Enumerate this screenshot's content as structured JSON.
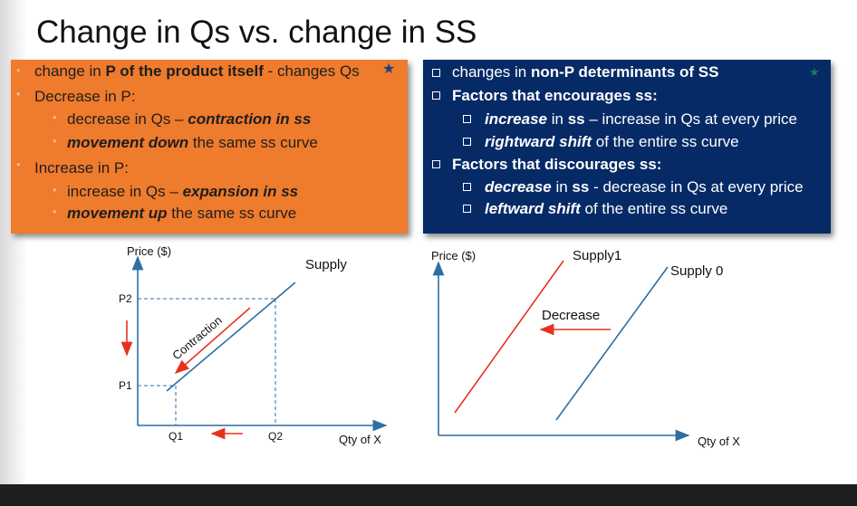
{
  "title": "Change in Qs vs. change in SS",
  "left_box": {
    "l1_pre": "change in ",
    "l1_bold": "P of the product itself",
    "l1_post": " - changes Qs",
    "l2": "Decrease in P:",
    "l3_pre": "decrease in Qs – ",
    "l3_bi": "contraction in ss",
    "l4_bi": "movement down",
    "l4_post": " the same ss curve",
    "l5": "Increase in P:",
    "l6_pre": "increase in Qs – ",
    "l6_bi": "expansion in ss",
    "l7_bi": "movement up",
    "l7_post": " the same ss curve"
  },
  "right_box": {
    "l1_pre": "changes in ",
    "l1_bold": "non-P determinants of SS",
    "l2": "Factors that encourages ss:",
    "l3_bi": "increase",
    "l3_mid": " in ",
    "l3_b": "ss",
    "l3_post": " – increase in Qs at every price",
    "l4_bi": "rightward shift",
    "l4_post": " of the entire ss curve",
    "l5": "Factors that discourages ss:",
    "l6_bi": "decrease",
    "l6_mid": " in ",
    "l6_b": "ss",
    "l6_post": " - decrease in Qs at every price",
    "l7_bi": "leftward shift",
    "l7_post": " of the entire ss curve"
  },
  "left_graph": {
    "ylabel": "Price ($)",
    "xlabel": "Qty of X",
    "curve_label": "Supply",
    "p2": "P2",
    "p1": "P1",
    "q1": "Q1",
    "q2": "Q2",
    "arrow_label": "Contraction"
  },
  "right_graph": {
    "ylabel": "Price ($)",
    "xlabel": "Qty of X",
    "curve1_label": "Supply1",
    "curve0_label": "Supply 0",
    "arrow_label": "Decrease"
  },
  "colors": {
    "orange": "#ef7b2d",
    "navy": "#062a66",
    "supply_line": "#2e6fa3",
    "shift_line": "#e8321e"
  }
}
